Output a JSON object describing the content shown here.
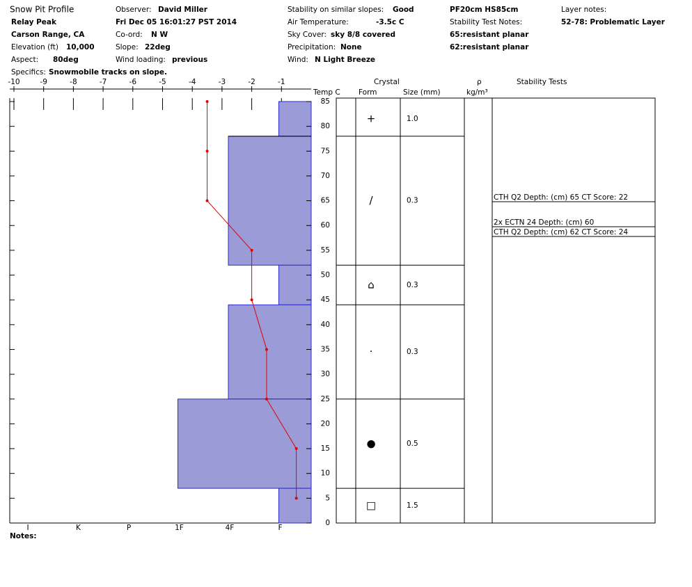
{
  "header": {
    "title": "Snow Pit Profile",
    "location": "Relay Peak",
    "range": "Carson Range, CA",
    "elevation": {
      "label": "Elevation (ft)",
      "value": "10,000"
    },
    "aspect": {
      "label": "Aspect:",
      "value": "80deg"
    },
    "specifics": {
      "label": "Specifics:",
      "value": "Snowmobile tracks on slope."
    },
    "observer": {
      "label": "Observer:",
      "value": "David Miller"
    },
    "date": "Fri Dec 05 16:01:27 PST 2014",
    "coord": {
      "label": "Co-ord:",
      "value": "N  W"
    },
    "slope": {
      "label": "Slope:",
      "value": "22deg"
    },
    "wind_loading": {
      "label": "Wind loading:",
      "value": "previous"
    },
    "stability": {
      "label": "Stability on similar slopes:",
      "value": "Good"
    },
    "air_temp": {
      "label": "Air Temperature:",
      "value": "-3.5c C"
    },
    "sky": {
      "label": "Sky Cover:",
      "value": "sky 8/8 covered"
    },
    "precip": {
      "label": "Precipitation:",
      "value": "None"
    },
    "wind": {
      "label": "Wind:",
      "value": "N Light Breeze"
    },
    "pit": "PF20cm HS85cm",
    "test_notes_label": "Stability Test Notes:",
    "test_notes": [
      "65:resistant planar",
      "62:resistant planar"
    ],
    "layer_notes_label": "Layer notes:",
    "layer_notes": [
      "52-78: Problematic Layer"
    ]
  },
  "columns": {
    "crystal": "Crystal",
    "form": "Form",
    "size": "Size (mm)",
    "rho": "ρ",
    "density_unit": "kg/m³",
    "stability": "Stability Tests"
  },
  "notes_label": "Notes:",
  "chart_data": {
    "type": "snow-profile",
    "temperature_label": "Temp C",
    "xlim": [
      -10,
      0
    ],
    "xticks": [
      -10,
      -9,
      -8,
      -7,
      -6,
      -5,
      -4,
      -3,
      -2,
      -1
    ],
    "ylim": [
      0,
      85
    ],
    "yticks": [
      0,
      5,
      10,
      15,
      20,
      25,
      30,
      35,
      40,
      45,
      50,
      55,
      60,
      65,
      70,
      75,
      80,
      85
    ],
    "hardness_categories": [
      "I",
      "K",
      "P",
      "1F",
      "4F",
      "F"
    ],
    "layer_color": "#9b9bd8",
    "layer_edge": "#2a2ac8",
    "layers": [
      {
        "top": 85,
        "bottom": 78,
        "hardness": "F",
        "form": "+",
        "size": "1.0"
      },
      {
        "top": 78,
        "bottom": 52,
        "hardness": "4F",
        "form": "/",
        "size": "0.3"
      },
      {
        "top": 52,
        "bottom": 44,
        "hardness": "F",
        "form": "⌂",
        "size": "0.3"
      },
      {
        "top": 44,
        "bottom": 25,
        "hardness": "4F",
        "form": "·",
        "size": "0.3"
      },
      {
        "top": 25,
        "bottom": 7,
        "hardness": "1F",
        "form": "●",
        "size": "0.5"
      },
      {
        "top": 7,
        "bottom": 0,
        "hardness": "F",
        "form": "□",
        "size": "1.5"
      }
    ],
    "marked_depth": 78,
    "marked_color": "#e00000",
    "temperature_profile": {
      "color": "#e00000",
      "depth": [
        85,
        75,
        65,
        55,
        45,
        35,
        25,
        15,
        5
      ],
      "temp": [
        -3.5,
        -3.5,
        -3.5,
        -2.0,
        -2.0,
        -1.5,
        -1.5,
        -0.5,
        -0.5
      ]
    },
    "stability_tests": [
      "CTH Q2 Depth: (cm) 65 CT Score: 22",
      "2x ECTN 24   Depth: (cm) 60",
      "CTH Q2 Depth: (cm) 62 CT Score: 24"
    ]
  }
}
